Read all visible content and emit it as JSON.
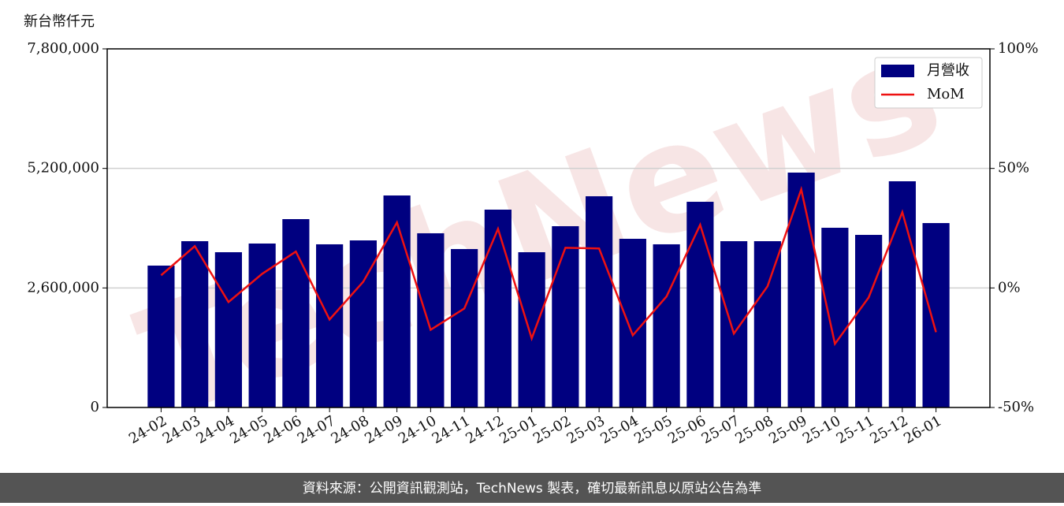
{
  "chart_data": {
    "type": "bar_line",
    "y_label": "新台幣仟元",
    "watermark": "TechNews",
    "footer": "資料來源：公開資訊觀測站，TechNews 製表，確切最新訊息以原站公告為準",
    "categories": [
      "24-02",
      "24-03",
      "24-04",
      "24-05",
      "24-06",
      "24-07",
      "24-08",
      "24-09",
      "24-10",
      "24-11",
      "24-12",
      "25-01",
      "25-02",
      "25-03",
      "25-04",
      "25-05",
      "25-06",
      "25-07",
      "25-08",
      "25-09",
      "25-10",
      "25-11",
      "25-12",
      "26-01"
    ],
    "series": [
      {
        "name": "月營收",
        "type": "bar",
        "color": "#000080",
        "values": [
          3086000,
          3617000,
          3377000,
          3566000,
          4097000,
          3549000,
          3634000,
          4611000,
          3789000,
          3446000,
          4303000,
          3377000,
          3943000,
          4594000,
          3669000,
          3549000,
          4474000,
          3617000,
          3617000,
          5109000,
          3909000,
          3754000,
          4920000,
          4011000
        ]
      },
      {
        "name": "MoM",
        "type": "line",
        "axis": "y2",
        "color": "#ee1111",
        "values": [
          5.3,
          17.5,
          -5.9,
          5.9,
          15.2,
          -13.2,
          2.6,
          27.4,
          -17.5,
          -8.6,
          24.7,
          -21.1,
          16.8,
          16.5,
          -19.8,
          -3.6,
          26.4,
          -19.1,
          0.7,
          41.2,
          -23.4,
          -4.0,
          31.7,
          -18.5
        ]
      }
    ],
    "ylim": [
      0,
      7800000
    ],
    "yticks": [
      0,
      {
        "value": 2600000,
        "label": "2,600,000"
      },
      {
        "value": 5200000,
        "label": "5,200,000"
      },
      {
        "value": 7800000,
        "label": "7,800,000"
      }
    ],
    "y2lim": [
      -50,
      100
    ],
    "y2ticks": [
      {
        "value": -50,
        "label": "-50%"
      },
      {
        "value": 0,
        "label": "0%"
      },
      {
        "value": 50,
        "label": "50%"
      },
      {
        "value": 100,
        "label": "100%"
      }
    ],
    "grid": true,
    "legend": "upper right"
  }
}
